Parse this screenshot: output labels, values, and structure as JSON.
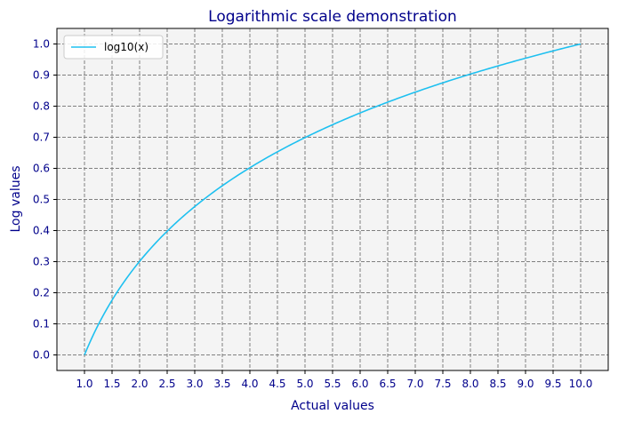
{
  "chart_data": {
    "type": "line",
    "title": "Logarithmic scale demonstration",
    "xlabel": "Actual values",
    "ylabel": "Log values",
    "xlim": [
      0.5,
      10.5
    ],
    "ylim": [
      -0.05,
      1.05
    ],
    "x_ticks": [
      "1.0",
      "1.5",
      "2.0",
      "2.5",
      "3.0",
      "3.5",
      "4.0",
      "4.5",
      "5.0",
      "5.5",
      "6.0",
      "6.5",
      "7.0",
      "7.5",
      "8.0",
      "8.5",
      "9.0",
      "9.5",
      "10.0"
    ],
    "y_ticks": [
      "0.0",
      "0.1",
      "0.2",
      "0.3",
      "0.4",
      "0.5",
      "0.6",
      "0.7",
      "0.8",
      "0.9",
      "1.0"
    ],
    "grid": true,
    "grid_style": "dashed",
    "legend_position": "top-left",
    "series": [
      {
        "name": "log10(x)",
        "color": "#1ec0f0",
        "x": [
          1.0,
          1.5,
          2.0,
          2.5,
          3.0,
          3.5,
          4.0,
          4.5,
          5.0,
          5.5,
          6.0,
          6.5,
          7.0,
          7.5,
          8.0,
          8.5,
          9.0,
          9.5,
          10.0
        ],
        "y": [
          0.0,
          0.176,
          0.301,
          0.398,
          0.477,
          0.544,
          0.602,
          0.653,
          0.699,
          0.74,
          0.778,
          0.813,
          0.845,
          0.875,
          0.903,
          0.929,
          0.954,
          0.978,
          1.0
        ]
      }
    ]
  }
}
